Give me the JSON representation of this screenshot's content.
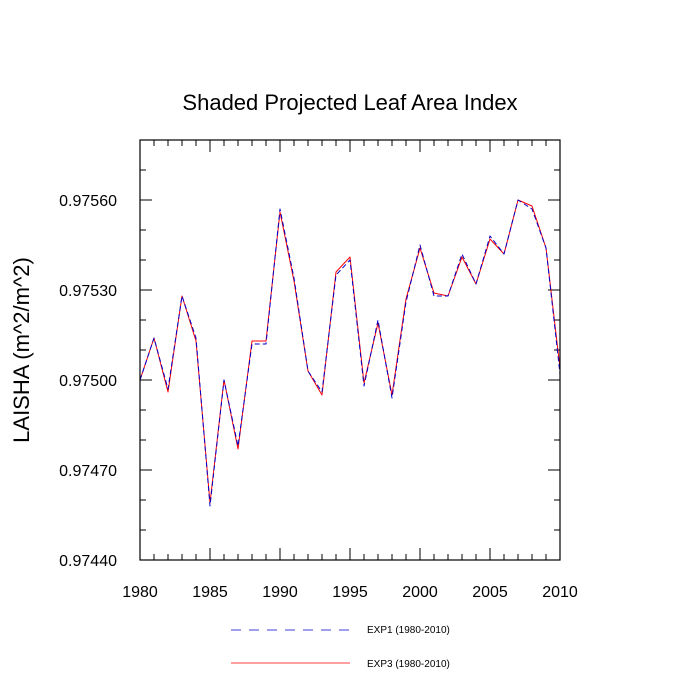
{
  "chart_data": {
    "type": "line",
    "title": "Shaded Projected Leaf Area Index",
    "xlabel": "",
    "ylabel": "LAISHA  (m^2/m^2)",
    "xlim": [
      1980,
      2010
    ],
    "ylim": [
      0.9744,
      0.9758
    ],
    "x_ticks": [
      1980,
      1985,
      1990,
      1995,
      2000,
      2005,
      2010
    ],
    "x_tick_labels": [
      "1980",
      "1985",
      "1990",
      "1995",
      "2000",
      "2005",
      "2010"
    ],
    "y_ticks": [
      0.9744,
      0.9747,
      0.975,
      0.9753,
      0.9756
    ],
    "y_tick_labels": [
      "0.97440",
      "0.97470",
      "0.97500",
      "0.97530",
      "0.97560"
    ],
    "grid": false,
    "legend_position": "bottom",
    "x": [
      1980,
      1981,
      1982,
      1983,
      1984,
      1985,
      1986,
      1987,
      1988,
      1989,
      1990,
      1991,
      1992,
      1993,
      1994,
      1995,
      1996,
      1997,
      1998,
      1999,
      2000,
      2001,
      2002,
      2003,
      2004,
      2005,
      2006,
      2007,
      2008,
      2009,
      2010
    ],
    "series": [
      {
        "name": "EXP1 (1980-2010)",
        "color": "#0000cc",
        "style": "dashed",
        "values": [
          0.975,
          0.97514,
          0.97497,
          0.97528,
          0.97514,
          0.97458,
          0.975,
          0.97478,
          0.97512,
          0.97512,
          0.97557,
          0.97534,
          0.97503,
          0.97496,
          0.97535,
          0.9754,
          0.97498,
          0.9752,
          0.97494,
          0.97526,
          0.97545,
          0.97528,
          0.97528,
          0.97542,
          0.97532,
          0.97548,
          0.97542,
          0.9756,
          0.97557,
          0.97544,
          0.97502
        ]
      },
      {
        "name": "EXP3 (1980-2010)",
        "color": "#ff0000",
        "style": "solid",
        "values": [
          0.975,
          0.97514,
          0.97496,
          0.97528,
          0.97513,
          0.97459,
          0.975,
          0.97477,
          0.97513,
          0.97513,
          0.97556,
          0.97533,
          0.97503,
          0.97495,
          0.97536,
          0.97541,
          0.97499,
          0.97519,
          0.97495,
          0.97527,
          0.97544,
          0.97529,
          0.97528,
          0.97541,
          0.97532,
          0.97547,
          0.97542,
          0.9756,
          0.97558,
          0.97544,
          0.97504
        ]
      }
    ]
  }
}
